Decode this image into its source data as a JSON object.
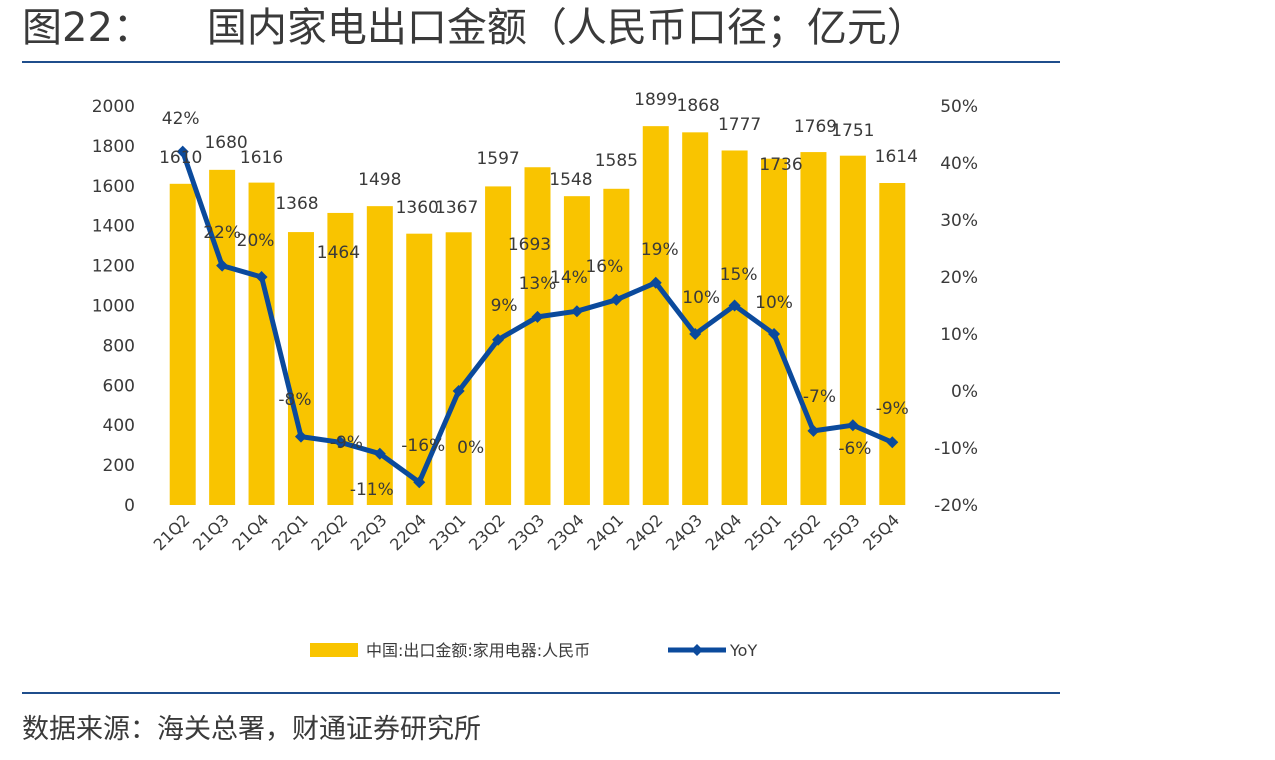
{
  "header": {
    "figure_label": "图22：",
    "title": "国内家电出口金额（人民币口径；亿元）"
  },
  "footer": {
    "source": "数据来源：海关总署，财通证券研究所"
  },
  "colors": {
    "bar": "#F9C400",
    "line": "#0B4A9C",
    "rule": "#1F4E8C",
    "text": "#3A3A3A"
  },
  "chart_data": {
    "type": "bar",
    "categories": [
      "21Q2",
      "21Q3",
      "21Q4",
      "22Q1",
      "22Q2",
      "22Q3",
      "22Q4",
      "23Q1",
      "23Q2",
      "23Q3",
      "23Q4",
      "24Q1",
      "24Q2",
      "24Q3",
      "24Q4",
      "25Q1",
      "25Q2",
      "25Q3",
      "25Q4"
    ],
    "series": [
      {
        "name": "中国:出口金额:家用电器:人民币",
        "type": "bar",
        "axis": "left",
        "values": [
          1610,
          1680,
          1616,
          1368,
          1464,
          1498,
          1360,
          1367,
          1597,
          1693,
          1548,
          1585,
          1899,
          1868,
          1777,
          1736,
          1769,
          1751,
          1614
        ],
        "labels": [
          "1610",
          "1680",
          "1616",
          "1368",
          "1464",
          "1498",
          "1360",
          "1367",
          "1597",
          "1693",
          "1548",
          "1585",
          "1899",
          "1868",
          "1777",
          "1736",
          "1769",
          "1751",
          "1614"
        ]
      },
      {
        "name": "YoY",
        "type": "line",
        "axis": "right",
        "values": [
          42,
          22,
          20,
          -8,
          -9,
          -11,
          -16,
          0,
          9,
          13,
          14,
          16,
          19,
          10,
          15,
          10,
          -7,
          -6,
          -9
        ],
        "labels": [
          "42%",
          "22%",
          "20%",
          "-8%",
          "-9%",
          "-11%",
          "-16%",
          "0%",
          "9%",
          "13%",
          "14%",
          "16%",
          "19%",
          "10%",
          "15%",
          "10%",
          "-7%",
          "-6%",
          "-9%"
        ]
      }
    ],
    "y_left": {
      "min": 0,
      "max": 2000,
      "step": 200,
      "tick_labels": [
        "0",
        "200",
        "400",
        "600",
        "800",
        "1000",
        "1200",
        "1400",
        "1600",
        "1800",
        "2000"
      ]
    },
    "y_right": {
      "min": -20,
      "max": 50,
      "step": 10,
      "tick_labels": [
        "-20%",
        "-10%",
        "0%",
        "10%",
        "20%",
        "30%",
        "40%",
        "50%"
      ]
    },
    "legend": {
      "position": "bottom",
      "items": [
        "中国:出口金额:家用电器:人民币",
        "YoY"
      ]
    },
    "grid": false
  }
}
